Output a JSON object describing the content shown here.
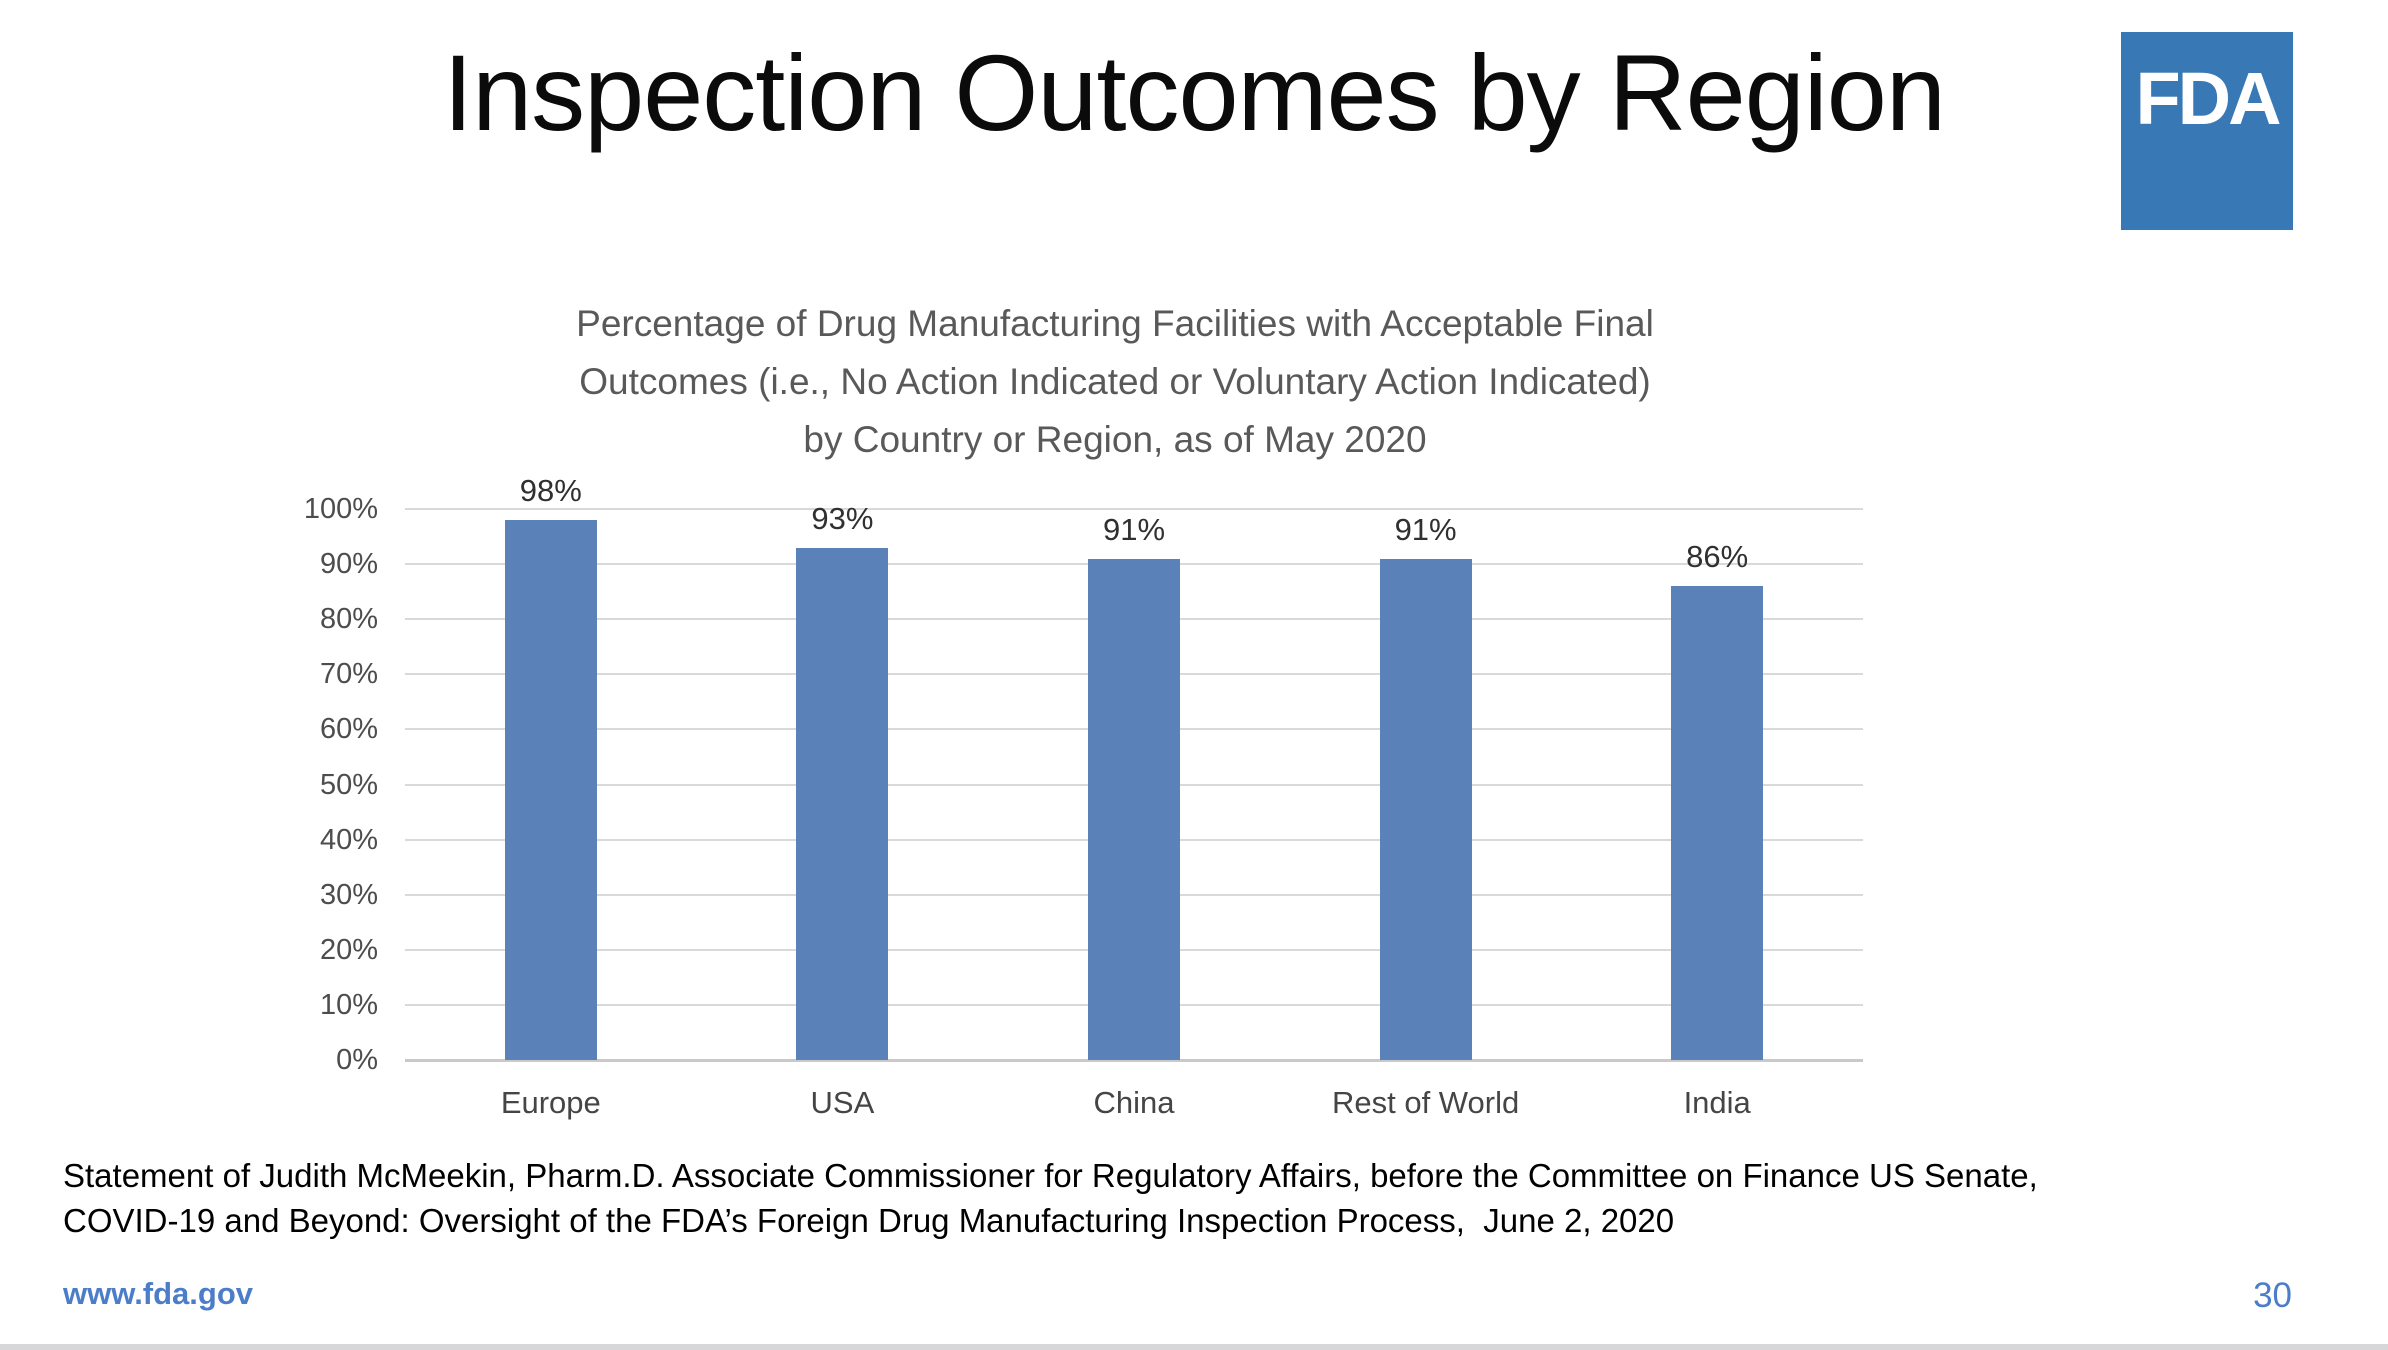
{
  "slide": {
    "title": "Inspection Outcomes by Region",
    "logo": {
      "text": "FDA",
      "background_color": "#3878b4",
      "text_color": "#ffffff"
    },
    "footer": {
      "line1": "Statement of Judith McMeekin, Pharm.D. Associate Commissioner for Regulatory Affairs, before the Committee on Finance US Senate,",
      "line2": "COVID-19 and Beyond: Oversight of the FDA’s Foreign Drug Manufacturing Inspection Process,  June 2, 2020"
    },
    "website": "www.fda.gov",
    "website_color": "#4c7dc9",
    "page_number": "30",
    "page_number_color": "#4c7dc9"
  },
  "chart_data": {
    "type": "bar",
    "title": "Percentage of Drug Manufacturing Facilities with Acceptable Final Outcomes (i.e., No Action Indicated or Voluntary Action Indicated) by Country or Region, as of May 2020",
    "title_lines": [
      "Percentage of Drug Manufacturing Facilities with Acceptable Final",
      "Outcomes (i.e., No Action Indicated or Voluntary Action Indicated)",
      "by Country or Region, as of May 2020"
    ],
    "categories": [
      "Europe",
      "USA",
      "China",
      "Rest of World",
      "India"
    ],
    "values": [
      98,
      93,
      91,
      91,
      86
    ],
    "data_labels": [
      "98%",
      "93%",
      "91%",
      "91%",
      "86%"
    ],
    "xlabel": "",
    "ylabel": "",
    "ylim": [
      0,
      100
    ],
    "y_ticks": [
      "0%",
      "10%",
      "20%",
      "30%",
      "40%",
      "50%",
      "60%",
      "70%",
      "80%",
      "90%",
      "100%"
    ],
    "grid": true,
    "legend": "none",
    "bar_color": "#5b82b8",
    "gridline_color": "#d9d9d9"
  }
}
